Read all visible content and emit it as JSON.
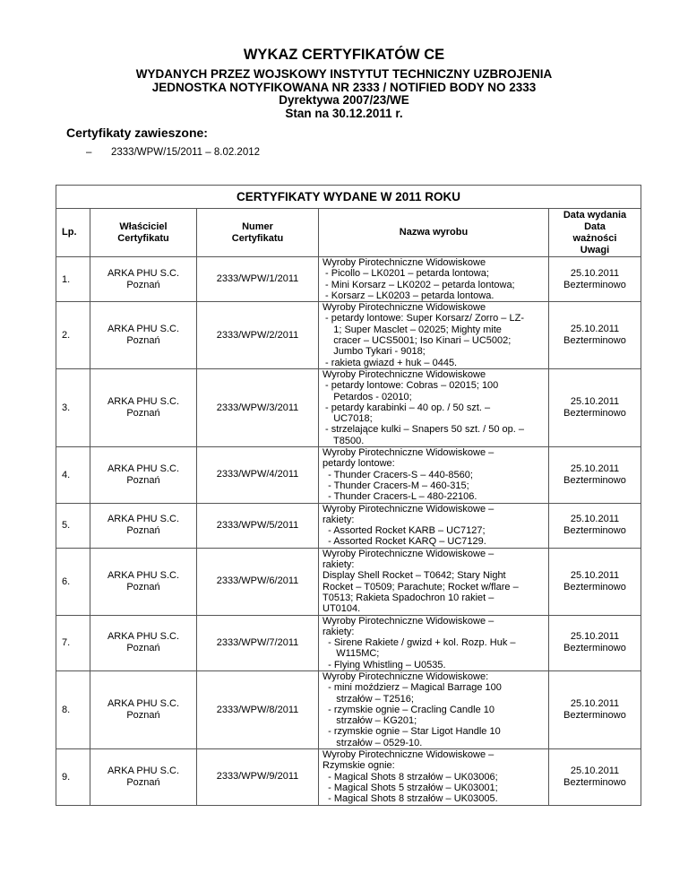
{
  "header": {
    "title": "WYKAZ CERTYFIKATÓW CE",
    "subtitle_lines": [
      "WYDANYCH PRZEZ WOJSKOWY INSTYTUT TECHNICZNY UZBROJENIA",
      "JEDNOSTKA NOTYFIKOWANA NR 2333 / NOTIFIED BODY NO 2333",
      "Dyrektywa 2007/23/WE",
      "Stan na 30.12.2011 r."
    ]
  },
  "suspended": {
    "heading": "Certyfikaty zawieszone:",
    "bullet": "–",
    "items": [
      "2333/WPW/15/2011 – 8.02.2012"
    ]
  },
  "table": {
    "caption": "CERTYFIKATY WYDANE W 2011 ROKU",
    "columns": {
      "lp": "Lp.",
      "owner": [
        "Właściciel",
        "Certyfikatu"
      ],
      "number": [
        "Numer",
        "Certyfikatu"
      ],
      "product": "Nazwa wyrobu",
      "date": [
        "Data wydania",
        "Data",
        "ważności",
        "Uwagi"
      ]
    },
    "rows": [
      {
        "lp": "1.",
        "owner": [
          "ARKA PHU S.C.",
          "Poznań"
        ],
        "number": "2333/WPW/1/2011",
        "product": [
          "Wyroby Pirotechniczne Widowiskowe",
          " - Picollo – LK0201 – petarda lontowa;",
          " - Mini Korsarz – LK0202 – petarda lontowa;",
          " - Korsarz – LK0203 – petarda lontowa."
        ],
        "date": [
          "25.10.2011",
          "Bezterminowo"
        ]
      },
      {
        "lp": "2.",
        "owner": [
          "ARKA PHU S.C.",
          "Poznań"
        ],
        "number": "2333/WPW/2/2011",
        "product": [
          "Wyroby Pirotechniczne Widowiskowe",
          " - petardy lontowe: Super Korsarz/ Zorro – LZ-",
          "    1; Super Masclet – 02025; Mighty mite",
          "    cracer – UCS5001; Iso Kinari – UC5002;",
          "    Jumbo Tykari - 9018;",
          " - rakieta gwiazd + huk – 0445."
        ],
        "date": [
          "25.10.2011",
          "Bezterminowo"
        ]
      },
      {
        "lp": "3.",
        "owner": [
          "ARKA PHU S.C.",
          "Poznań"
        ],
        "number": "2333/WPW/3/2011",
        "product": [
          "Wyroby Pirotechniczne Widowiskowe",
          " - petardy lontowe: Cobras – 02015; 100",
          "    Petardos - 02010;",
          " - petardy karabinki – 40 op. / 50 szt. –",
          "    UC7018;",
          " - strzelające kulki – Snapers 50 szt. / 50 op. –",
          "    T8500."
        ],
        "date": [
          "25.10.2011",
          "Bezterminowo"
        ]
      },
      {
        "lp": "4.",
        "owner": [
          "ARKA PHU S.C.",
          "Poznań"
        ],
        "number": "2333/WPW/4/2011",
        "product": [
          "Wyroby Pirotechniczne Widowiskowe –",
          "petardy lontowe:",
          "  - Thunder Cracers-S – 440-8560;",
          "  - Thunder Cracers-M – 460-315;",
          "  - Thunder Cracers-L – 480-22106."
        ],
        "date": [
          "25.10.2011",
          "Bezterminowo"
        ]
      },
      {
        "lp": "5.",
        "owner": [
          "ARKA PHU S.C.",
          "Poznań"
        ],
        "number": "2333/WPW/5/2011",
        "product": [
          "Wyroby Pirotechniczne Widowiskowe –",
          "rakiety:",
          "  - Assorted Rocket KARB – UC7127;",
          "  - Assorted Rocket KARQ – UC7129."
        ],
        "date": [
          "25.10.2011",
          "Bezterminowo"
        ]
      },
      {
        "lp": "6.",
        "owner": [
          "ARKA PHU S.C.",
          "Poznań"
        ],
        "number": "2333/WPW/6/2011",
        "product": [
          "Wyroby Pirotechniczne Widowiskowe –",
          "rakiety:",
          "Display Shell Rocket – T0642; Stary Night",
          "Rocket – T0509; Parachute; Rocket w/flare –",
          "T0513; Rakieta Spadochron 10 rakiet –",
          "UT0104."
        ],
        "date": [
          "25.10.2011",
          "Bezterminowo"
        ]
      },
      {
        "lp": "7.",
        "owner": [
          "ARKA PHU S.C.",
          "Poznań"
        ],
        "number": "2333/WPW/7/2011",
        "product": [
          "Wyroby Pirotechniczne Widowiskowe –",
          "rakiety:",
          "  - Sirene Rakiete / gwizd + kol. Rozp. Huk –",
          "     W115MC;",
          "  - Flying Whistling – U0535."
        ],
        "date": [
          "25.10.2011",
          "Bezterminowo"
        ]
      },
      {
        "lp": "8.",
        "owner": [
          "ARKA PHU S.C.",
          "Poznań"
        ],
        "number": "2333/WPW/8/2011",
        "product": [
          "Wyroby Pirotechniczne Widowiskowe:",
          "  - mini moździerz – Magical Barrage 100",
          "     strzałów – T2516;",
          "  - rzymskie ognie – Cracling Candle 10",
          "     strzałów – KG201;",
          "  - rzymskie ognie – Star Ligot Handle 10",
          "     strzałów – 0529-10."
        ],
        "date": [
          "25.10.2011",
          "Bezterminowo"
        ]
      },
      {
        "lp": "9.",
        "owner": [
          "ARKA PHU S.C.",
          "Poznań"
        ],
        "number": "2333/WPW/9/2011",
        "product": [
          "Wyroby Pirotechniczne Widowiskowe –",
          "Rzymskie ognie:",
          "  - Magical Shots 8 strzałów – UK03006;",
          "  - Magical Shots 5 strzałów – UK03001;",
          "  - Magical Shots 8 strzałów – UK03005."
        ],
        "date": [
          "25.10.2011",
          "Bezterminowo"
        ]
      }
    ]
  }
}
